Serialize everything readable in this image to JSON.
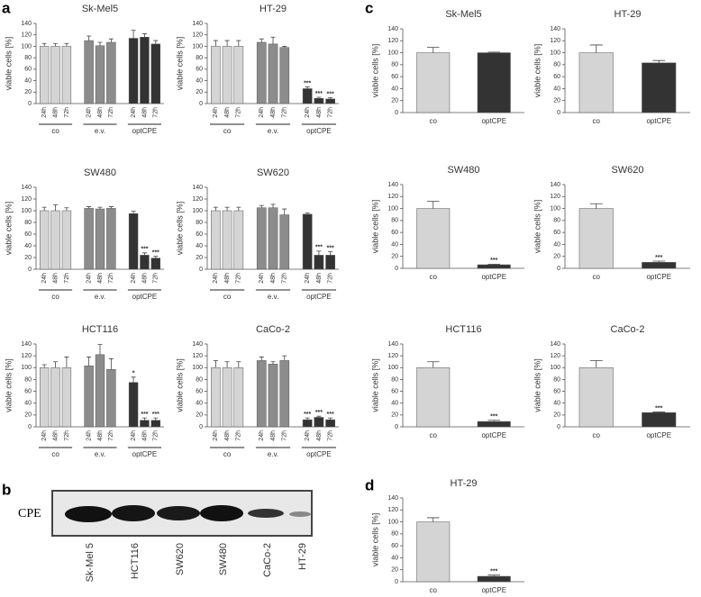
{
  "panels": [
    "a",
    "b",
    "c",
    "d"
  ],
  "blot": {
    "label": "CPE",
    "lanes": [
      "Sk-Mel 5",
      "HCT116",
      "SW620",
      "SW480",
      "CaCo-2",
      "HT-29"
    ]
  },
  "chart_data": [
    {
      "type": "bar",
      "title": "Sk-Mel5",
      "ylabel": "viable cells [%]",
      "ylim": [
        0,
        140
      ],
      "yticks": [
        0,
        20,
        40,
        60,
        80,
        100,
        120,
        140
      ],
      "categories": [
        "24h",
        "48h",
        "72h"
      ],
      "series": [
        {
          "name": "co",
          "color": "#d4d4d4",
          "values": [
            100,
            100,
            100
          ],
          "errors": [
            5,
            5,
            5
          ]
        },
        {
          "name": "e.v.",
          "color": "#8c8c8c",
          "values": [
            110,
            101,
            107
          ],
          "errors": [
            8,
            6,
            6
          ]
        },
        {
          "name": "optCPE",
          "color": "#333333",
          "values": [
            114,
            116,
            104
          ],
          "errors": [
            14,
            6,
            6
          ]
        }
      ]
    },
    {
      "type": "bar",
      "title": "HT-29",
      "ylabel": "viable cells [%]",
      "ylim": [
        0,
        140
      ],
      "yticks": [
        0,
        20,
        40,
        60,
        80,
        100,
        120,
        140
      ],
      "categories": [
        "24h",
        "48h",
        "72h"
      ],
      "series": [
        {
          "name": "co",
          "color": "#d4d4d4",
          "values": [
            100,
            100,
            100
          ],
          "errors": [
            10,
            10,
            10
          ]
        },
        {
          "name": "e.v.",
          "color": "#8c8c8c",
          "values": [
            107,
            104,
            98
          ],
          "errors": [
            6,
            12,
            2
          ]
        },
        {
          "name": "optCPE",
          "color": "#333333",
          "values": [
            26,
            9,
            8
          ],
          "errors": [
            3,
            2,
            2
          ],
          "significance": [
            "***",
            "***",
            "***"
          ]
        }
      ]
    },
    {
      "type": "bar",
      "title": "SW480",
      "ylabel": "viable cells [%]",
      "ylim": [
        0,
        140
      ],
      "yticks": [
        0,
        20,
        40,
        60,
        80,
        100,
        120,
        140
      ],
      "categories": [
        "24h",
        "48h",
        "72h"
      ],
      "series": [
        {
          "name": "co",
          "color": "#d4d4d4",
          "values": [
            100,
            100,
            100
          ],
          "errors": [
            6,
            10,
            5
          ]
        },
        {
          "name": "e.v.",
          "color": "#8c8c8c",
          "values": [
            104,
            103,
            104
          ],
          "errors": [
            3,
            3,
            3
          ]
        },
        {
          "name": "optCPE",
          "color": "#333333",
          "values": [
            95,
            24,
            19
          ],
          "errors": [
            4,
            4,
            3
          ],
          "significance": [
            null,
            "***",
            "***"
          ]
        }
      ]
    },
    {
      "type": "bar",
      "title": "SW620",
      "ylabel": "viable cells [%]",
      "ylim": [
        0,
        140
      ],
      "yticks": [
        0,
        20,
        40,
        60,
        80,
        100,
        120,
        140
      ],
      "categories": [
        "24h",
        "48h",
        "72h"
      ],
      "series": [
        {
          "name": "co",
          "color": "#d4d4d4",
          "values": [
            100,
            100,
            100
          ],
          "errors": [
            6,
            6,
            6
          ]
        },
        {
          "name": "e.v.",
          "color": "#8c8c8c",
          "values": [
            105,
            105,
            93
          ],
          "errors": [
            4,
            6,
            10
          ]
        },
        {
          "name": "optCPE",
          "color": "#333333",
          "values": [
            94,
            24,
            24
          ],
          "errors": [
            2,
            7,
            6
          ],
          "significance": [
            null,
            "***",
            "***"
          ]
        }
      ]
    },
    {
      "type": "bar",
      "title": "HCT116",
      "ylabel": "viable cells [%]",
      "ylim": [
        0,
        140
      ],
      "yticks": [
        0,
        20,
        40,
        60,
        80,
        100,
        120,
        140
      ],
      "categories": [
        "24h",
        "48h",
        "72h"
      ],
      "series": [
        {
          "name": "co",
          "color": "#d4d4d4",
          "values": [
            100,
            100,
            100
          ],
          "errors": [
            5,
            10,
            18
          ]
        },
        {
          "name": "e.v.",
          "color": "#8c8c8c",
          "values": [
            103,
            122,
            97
          ],
          "errors": [
            15,
            17,
            18
          ]
        },
        {
          "name": "optCPE",
          "color": "#333333",
          "values": [
            75,
            11,
            11
          ],
          "errors": [
            9,
            4,
            4
          ],
          "significance": [
            "*",
            "***",
            "***"
          ]
        }
      ]
    },
    {
      "type": "bar",
      "title": "CaCo-2",
      "ylabel": "viable cells [%]",
      "ylim": [
        0,
        140
      ],
      "yticks": [
        0,
        20,
        40,
        60,
        80,
        100,
        120,
        140
      ],
      "categories": [
        "24h",
        "48h",
        "72h"
      ],
      "series": [
        {
          "name": "co",
          "color": "#d4d4d4",
          "values": [
            100,
            100,
            100
          ],
          "errors": [
            12,
            10,
            10
          ]
        },
        {
          "name": "e.v.",
          "color": "#8c8c8c",
          "values": [
            112,
            106,
            112
          ],
          "errors": [
            6,
            4,
            8
          ]
        },
        {
          "name": "optCPE",
          "color": "#333333",
          "values": [
            12,
            16,
            12
          ],
          "errors": [
            3,
            2,
            3
          ],
          "significance": [
            "***",
            "***",
            "***"
          ]
        }
      ]
    },
    {
      "type": "bar",
      "title": "Sk-Mel5",
      "ylabel": "viable cells [%]",
      "ylim": [
        0,
        140
      ],
      "yticks": [
        0,
        20,
        40,
        60,
        80,
        100,
        120,
        140
      ],
      "categories": [
        "co",
        "optCPE"
      ],
      "values": [
        100,
        100
      ],
      "errors": [
        9,
        1
      ],
      "colors": [
        "#d4d4d4",
        "#333333"
      ]
    },
    {
      "type": "bar",
      "title": "HT-29",
      "ylabel": "viable cells [%]",
      "ylim": [
        0,
        140
      ],
      "yticks": [
        0,
        20,
        40,
        60,
        80,
        100,
        120,
        140
      ],
      "categories": [
        "co",
        "optCPE"
      ],
      "values": [
        100,
        83
      ],
      "errors": [
        13,
        4
      ],
      "colors": [
        "#d4d4d4",
        "#333333"
      ]
    },
    {
      "type": "bar",
      "title": "SW480",
      "ylabel": "viable cells [%]",
      "ylim": [
        0,
        140
      ],
      "yticks": [
        0,
        20,
        40,
        60,
        80,
        100,
        120,
        140
      ],
      "categories": [
        "co",
        "optCPE"
      ],
      "values": [
        100,
        6
      ],
      "errors": [
        12,
        1
      ],
      "colors": [
        "#d4d4d4",
        "#333333"
      ],
      "significance": [
        null,
        "***"
      ]
    },
    {
      "type": "bar",
      "title": "SW620",
      "ylabel": "viable cells [%]",
      "ylim": [
        0,
        140
      ],
      "yticks": [
        0,
        20,
        40,
        60,
        80,
        100,
        120,
        140
      ],
      "categories": [
        "co",
        "optCPE"
      ],
      "values": [
        100,
        10
      ],
      "errors": [
        8,
        2
      ],
      "colors": [
        "#d4d4d4",
        "#333333"
      ],
      "significance": [
        null,
        "***"
      ]
    },
    {
      "type": "bar",
      "title": "HCT116",
      "ylabel": "viable cells [%]",
      "ylim": [
        0,
        140
      ],
      "yticks": [
        0,
        20,
        40,
        60,
        80,
        100,
        120,
        140
      ],
      "categories": [
        "co",
        "optCPE"
      ],
      "values": [
        100,
        9
      ],
      "errors": [
        10,
        2
      ],
      "colors": [
        "#d4d4d4",
        "#333333"
      ],
      "significance": [
        null,
        "***"
      ]
    },
    {
      "type": "bar",
      "title": "CaCo-2",
      "ylabel": "viable cells [%]",
      "ylim": [
        0,
        140
      ],
      "yticks": [
        0,
        20,
        40,
        60,
        80,
        100,
        120,
        140
      ],
      "categories": [
        "co",
        "optCPE"
      ],
      "values": [
        100,
        24
      ],
      "errors": [
        12,
        1
      ],
      "colors": [
        "#d4d4d4",
        "#333333"
      ],
      "significance": [
        null,
        "***"
      ]
    },
    {
      "type": "bar",
      "title": "HT-29",
      "ylabel": "viable cells [%]",
      "ylim": [
        0,
        140
      ],
      "yticks": [
        0,
        20,
        40,
        60,
        80,
        100,
        120,
        140
      ],
      "categories": [
        "co",
        "optCPE"
      ],
      "values": [
        100,
        9
      ],
      "errors": [
        7,
        2
      ],
      "colors": [
        "#d4d4d4",
        "#333333"
      ],
      "significance": [
        null,
        "***"
      ]
    }
  ]
}
